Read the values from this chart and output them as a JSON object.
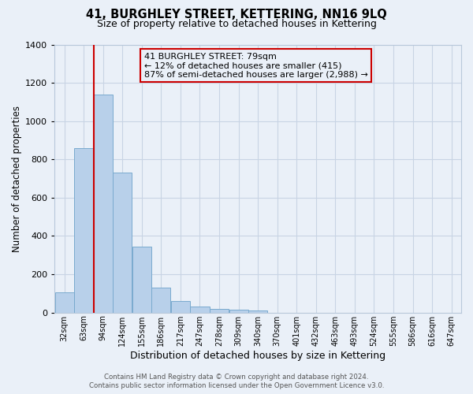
{
  "title_line1": "41, BURGHLEY STREET, KETTERING, NN16 9LQ",
  "title_line2": "Size of property relative to detached houses in Kettering",
  "xlabel": "Distribution of detached houses by size in Kettering",
  "ylabel": "Number of detached properties",
  "categories": [
    "32sqm",
    "63sqm",
    "94sqm",
    "124sqm",
    "155sqm",
    "186sqm",
    "217sqm",
    "247sqm",
    "278sqm",
    "309sqm",
    "340sqm",
    "370sqm",
    "401sqm",
    "432sqm",
    "463sqm",
    "493sqm",
    "524sqm",
    "555sqm",
    "586sqm",
    "616sqm",
    "647sqm"
  ],
  "bar_values": [
    105,
    860,
    1140,
    730,
    345,
    130,
    60,
    30,
    20,
    15,
    10,
    0,
    0,
    0,
    0,
    0,
    0,
    0,
    0,
    0,
    0
  ],
  "bar_color": "#b8d0ea",
  "bar_edge_color": "#7aaace",
  "vline_x_idx": 1.6,
  "vline_color": "#cc0000",
  "ylim": [
    0,
    1400
  ],
  "yticks": [
    0,
    200,
    400,
    600,
    800,
    1000,
    1200,
    1400
  ],
  "annotation_title": "41 BURGHLEY STREET: 79sqm",
  "annotation_line1": "← 12% of detached houses are smaller (415)",
  "annotation_line2": "87% of semi-detached houses are larger (2,988) →",
  "annotation_box_color": "#cc0000",
  "footer_line1": "Contains HM Land Registry data © Crown copyright and database right 2024.",
  "footer_line2": "Contains public sector information licensed under the Open Government Licence v3.0.",
  "grid_color": "#c8d4e4",
  "background_color": "#eaf0f8"
}
